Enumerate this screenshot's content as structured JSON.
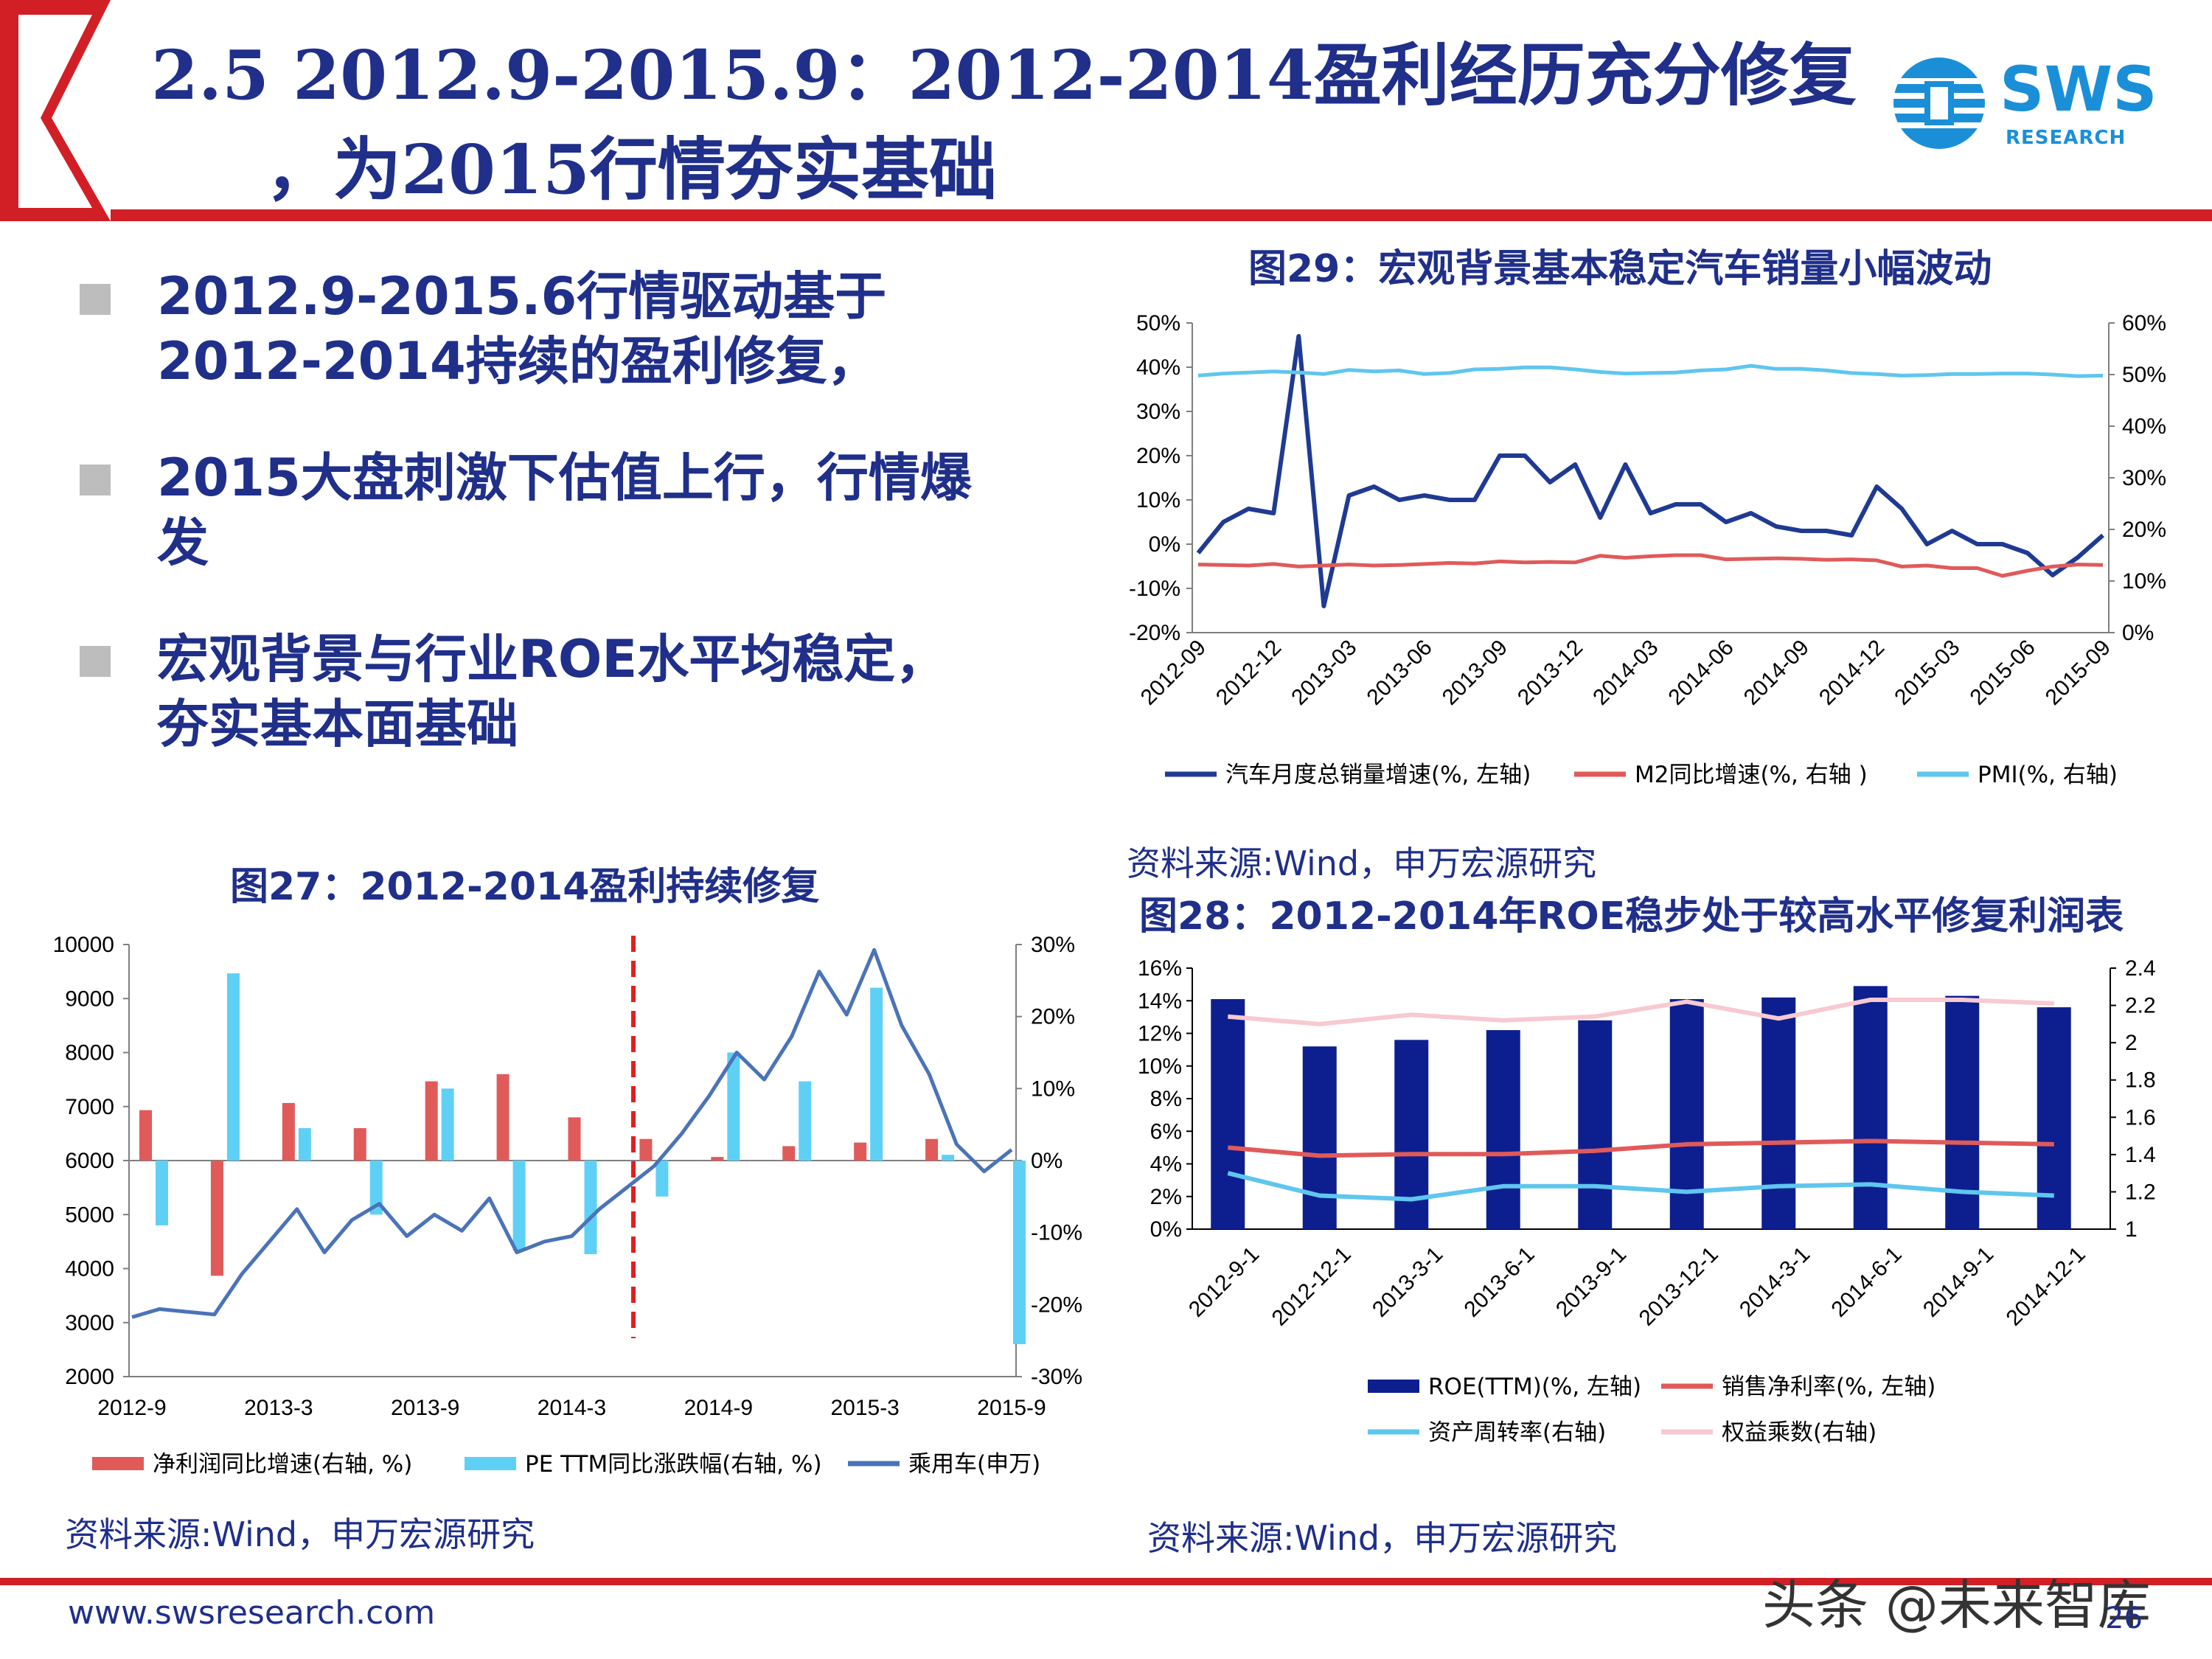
{
  "header": {
    "title_line1": "2.5 2012.9-2015.9：2012-2014盈利经历充分修复",
    "title_line2": "，为2015行情夯实基础",
    "logo_text": "SWS",
    "logo_sub": "RESEARCH",
    "accent_color": "#d21f26",
    "logo_blue": "#1a8fd8"
  },
  "bullets": [
    {
      "text": "2012.9-2015.6行情驱动基于2012-2014持续的盈利修复，"
    },
    {
      "text": "2015大盘刺激下估值上行，行情爆发"
    },
    {
      "text": "宏观背景与行业ROE水平均稳定，夯实基本面基础"
    }
  ],
  "footer": {
    "url": "www.swsresearch.com",
    "page_number": "26",
    "watermark": "头条 @未来智库"
  },
  "fig29": {
    "title": "图29：宏观背景基本稳定汽车销量小幅波动",
    "source": "资料来源:Wind，申万宏源研究"
  },
  "fig27": {
    "title": "图27：2012-2014盈利持续修复",
    "source": "资料来源:Wind，申万宏源研究"
  },
  "fig28": {
    "title": "图28：2012-2014年ROE稳步处于较高水平修复利润表",
    "source": "资料来源:Wind，申万宏源研究"
  },
  "chart_data": [
    {
      "id": "fig29",
      "type": "line",
      "x": [
        "2012-09",
        "2012-10",
        "2012-11",
        "2012-12",
        "2013-01",
        "2013-02",
        "2013-03",
        "2013-04",
        "2013-05",
        "2013-06",
        "2013-07",
        "2013-08",
        "2013-09",
        "2013-10",
        "2013-11",
        "2013-12",
        "2014-01",
        "2014-02",
        "2014-03",
        "2014-04",
        "2014-05",
        "2014-06",
        "2014-07",
        "2014-08",
        "2014-09",
        "2014-10",
        "2014-11",
        "2014-12",
        "2015-01",
        "2015-02",
        "2015-03",
        "2015-04",
        "2015-05",
        "2015-06",
        "2015-07",
        "2015-08",
        "2015-09"
      ],
      "xticks": [
        "2012-09",
        "2012-12",
        "2013-03",
        "2013-06",
        "2013-09",
        "2013-12",
        "2014-03",
        "2014-06",
        "2014-09",
        "2014-12",
        "2015-03",
        "2015-06",
        "2015-09"
      ],
      "y_left_ticks": [
        "50%",
        "40%",
        "30%",
        "20%",
        "10%",
        "0%",
        "-10%",
        "-20%"
      ],
      "y_right_ticks": [
        "60%",
        "50%",
        "40%",
        "30%",
        "20%",
        "10%",
        "0%"
      ],
      "ylim_left": [
        -20,
        50
      ],
      "ylim_right": [
        0,
        60
      ],
      "series": [
        {
          "name": "汽车月度总销量增速(%, 左轴)",
          "axis": "left",
          "color": "#1f3a93",
          "values": [
            -2,
            5,
            8,
            7,
            47,
            -14,
            11,
            13,
            10,
            11,
            10,
            10,
            20,
            20,
            14,
            18,
            6,
            18,
            7,
            9,
            9,
            5,
            7,
            4,
            3,
            3,
            2,
            13,
            8,
            0,
            3,
            0,
            0,
            -2,
            -7,
            -3,
            2
          ]
        },
        {
          "name": "M2同比增速(%, 右轴 )",
          "axis": "right",
          "color": "#e05a5a",
          "values": [
            13.2,
            13.1,
            13,
            13.3,
            12.8,
            13,
            13.2,
            13,
            13.1,
            13.3,
            13.5,
            13.4,
            13.8,
            13.6,
            13.7,
            13.6,
            14.9,
            14.5,
            14.8,
            15,
            15,
            14.2,
            14.3,
            14.4,
            14.3,
            14.1,
            14.2,
            14,
            12.8,
            13,
            12.5,
            12.5,
            11,
            12,
            12.8,
            13.2,
            13.1
          ]
        },
        {
          "name": "PMI(%, 右轴)",
          "axis": "right",
          "color": "#5fc6ee",
          "values": [
            49.8,
            50.2,
            50.4,
            50.6,
            50.4,
            50.1,
            50.9,
            50.6,
            50.8,
            50.1,
            50.3,
            51,
            51.1,
            51.4,
            51.4,
            51,
            50.5,
            50.2,
            50.3,
            50.4,
            50.8,
            51,
            51.7,
            51.1,
            51.1,
            50.8,
            50.3,
            50.1,
            49.8,
            49.9,
            50.1,
            50.1,
            50.2,
            50.2,
            50,
            49.7,
            49.8
          ]
        }
      ]
    },
    {
      "id": "fig27",
      "type": "bar",
      "xticks": [
        "2012-9",
        "2013-3",
        "2013-9",
        "2014-3",
        "2014-9",
        "2015-3",
        "2015-9"
      ],
      "y_left_ticks": [
        "10000",
        "9000",
        "8000",
        "7000",
        "6000",
        "5000",
        "4000",
        "3000",
        "2000"
      ],
      "y_right_ticks": [
        "30%",
        "20%",
        "10%",
        "0%",
        "-10%",
        "-20%",
        "-30%"
      ],
      "ylim_left": [
        2000,
        10000
      ],
      "ylim_right": [
        -30,
        30
      ],
      "quarters": [
        "2012Q3",
        "2012Q4",
        "2013Q1",
        "2013Q2",
        "2013Q3",
        "2013Q4",
        "2014Q1",
        "2014Q2",
        "2014Q3",
        "2014Q4",
        "2015Q1",
        "2015Q2",
        "2015Q3"
      ],
      "series": [
        {
          "name": "净利润同比增速(右轴, %)",
          "axis": "right",
          "color": "#e05a5a",
          "type": "bar",
          "values": [
            7,
            -16,
            8,
            4.5,
            11,
            12,
            6,
            3,
            0.5,
            2,
            2.5,
            3,
            0
          ]
        },
        {
          "name": "PE TTM同比涨跌幅(右轴, %)",
          "axis": "right",
          "color": "#5fd0f5",
          "type": "bar",
          "values": [
            -9,
            26,
            4.5,
            -7.5,
            10,
            -12.5,
            -13,
            -5,
            15,
            11,
            24,
            0.8,
            -25.5
          ]
        },
        {
          "name": "乘用车(申万)",
          "axis": "left",
          "color": "#4a73b8",
          "type": "line",
          "values": [
            3100,
            3250,
            3200,
            3150,
            3900,
            4500,
            5100,
            4300,
            4900,
            5200,
            4600,
            5000,
            4700,
            5300,
            4300,
            4500,
            4600,
            5100,
            5500,
            5900,
            6500,
            7200,
            8000,
            7500,
            8300,
            9500,
            8700,
            9900,
            8500,
            7600,
            6300,
            5800,
            6200
          ]
        }
      ],
      "marker": {
        "label": "2014-6 divider",
        "color": "#e02020"
      }
    },
    {
      "id": "fig28",
      "type": "bar",
      "x": [
        "2012-9-1",
        "2012-12-1",
        "2013-3-1",
        "2013-6-1",
        "2013-9-1",
        "2013-12-1",
        "2014-3-1",
        "2014-6-1",
        "2014-9-1",
        "2014-12-1"
      ],
      "y_left_ticks": [
        "16%",
        "14%",
        "12%",
        "10%",
        "8%",
        "6%",
        "4%",
        "2%",
        "0%"
      ],
      "y_right_ticks": [
        "2.4",
        "2.2",
        "2",
        "1.8",
        "1.6",
        "1.4",
        "1.2",
        "1"
      ],
      "ylim_left": [
        0,
        16
      ],
      "ylim_right": [
        1,
        2.4
      ],
      "series": [
        {
          "name": "ROE(TTM)(%, 左轴)",
          "axis": "left",
          "color": "#0d1f8f",
          "type": "bar",
          "values": [
            14.1,
            11.2,
            11.6,
            12.2,
            12.8,
            14.1,
            14.2,
            14.9,
            14.3,
            13.6
          ]
        },
        {
          "name": "销售净利率(%, 左轴)",
          "axis": "left",
          "color": "#e05a5a",
          "type": "line",
          "values": [
            5.0,
            4.5,
            4.6,
            4.6,
            4.8,
            5.2,
            5.3,
            5.4,
            5.3,
            5.2
          ]
        },
        {
          "name": "资产周转率(右轴)",
          "axis": "right",
          "color": "#5fc6ee",
          "type": "line",
          "values": [
            1.3,
            1.18,
            1.16,
            1.23,
            1.23,
            1.2,
            1.23,
            1.24,
            1.2,
            1.18
          ]
        },
        {
          "name": "权益乘数(右轴)",
          "axis": "right",
          "color": "#f7c9d0",
          "type": "line",
          "values": [
            2.14,
            2.1,
            2.15,
            2.12,
            2.14,
            2.22,
            2.13,
            2.23,
            2.23,
            2.21
          ]
        }
      ]
    }
  ]
}
